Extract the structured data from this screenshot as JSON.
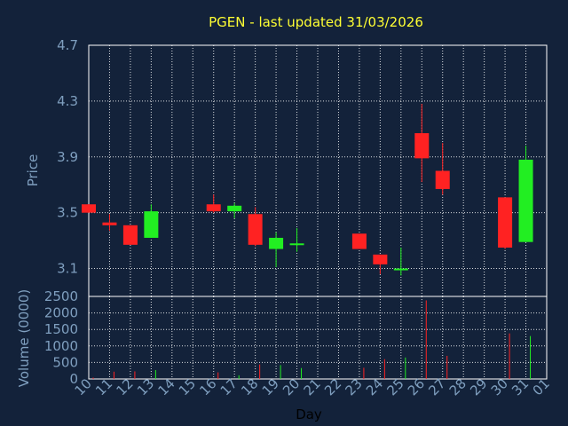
{
  "colors": {
    "background": "#13223a",
    "title": "#ffff33",
    "tick_label": "#7f9fbf",
    "up": "#22ee22",
    "down": "#ff2222",
    "flat": "#22ee22",
    "grid": "#ffffff"
  },
  "chart_data": [
    {
      "type": "candlestick",
      "title": "PGEN - last updated 31/03/2026",
      "ylabel": "Price",
      "ylim": [
        2.9,
        4.7
      ],
      "yticks": [
        "3.1",
        "3.5",
        "3.9",
        "4.3",
        "4.7"
      ],
      "grid": true,
      "candles": [
        {
          "day": "10",
          "open": 3.56,
          "high": 3.56,
          "low": 3.5,
          "close": 3.5
        },
        {
          "day": "11",
          "open": 3.43,
          "high": 3.49,
          "low": 3.37,
          "close": 3.41
        },
        {
          "day": "12",
          "open": 3.41,
          "high": 3.41,
          "low": 3.27,
          "close": 3.27
        },
        {
          "day": "13",
          "open": 3.32,
          "high": 3.56,
          "low": 3.32,
          "close": 3.51
        },
        {
          "day": "16",
          "open": 3.56,
          "high": 3.63,
          "low": 3.5,
          "close": 3.51
        },
        {
          "day": "17",
          "open": 3.51,
          "high": 3.57,
          "low": 3.46,
          "close": 3.55
        },
        {
          "day": "18",
          "open": 3.49,
          "high": 3.54,
          "low": 3.26,
          "close": 3.27
        },
        {
          "day": "19",
          "open": 3.24,
          "high": 3.36,
          "low": 3.11,
          "close": 3.32
        },
        {
          "day": "20",
          "open": 3.27,
          "high": 3.39,
          "low": 3.22,
          "close": 3.28
        },
        {
          "day": "23",
          "open": 3.35,
          "high": 3.35,
          "low": 3.24,
          "close": 3.24
        },
        {
          "day": "24",
          "open": 3.2,
          "high": 3.2,
          "low": 3.06,
          "close": 3.13
        },
        {
          "day": "25",
          "open": 3.1,
          "high": 3.25,
          "low": 3.05,
          "close": 3.1
        },
        {
          "day": "26",
          "open": 4.07,
          "high": 4.28,
          "low": 3.72,
          "close": 3.89
        },
        {
          "day": "27",
          "open": 3.8,
          "high": 4.0,
          "low": 3.63,
          "close": 3.67
        },
        {
          "day": "30",
          "open": 3.61,
          "high": 3.61,
          "low": 3.24,
          "close": 3.25
        },
        {
          "day": "31",
          "open": 3.29,
          "high": 3.98,
          "low": 3.29,
          "close": 3.88
        }
      ]
    },
    {
      "type": "bar",
      "ylabel": "Volume (0000)",
      "xlabel": "Day",
      "ylim": [
        0,
        2500
      ],
      "yticks": [
        "0",
        "500",
        "1000",
        "1500",
        "2000",
        "2500"
      ],
      "categories": [
        "10",
        "11",
        "12",
        "13",
        "14",
        "15",
        "16",
        "17",
        "18",
        "19",
        "20",
        "21",
        "22",
        "23",
        "24",
        "25",
        "26",
        "27",
        "28",
        "29",
        "30",
        "31",
        "01"
      ],
      "values": [
        40,
        220,
        230,
        270,
        0,
        0,
        200,
        110,
        440,
        420,
        330,
        0,
        0,
        340,
        600,
        650,
        2380,
        700,
        0,
        0,
        1380,
        1300,
        0
      ],
      "directions": [
        "down",
        "down",
        "down",
        "up",
        "",
        "",
        "down",
        "up",
        "down",
        "up",
        "up",
        "",
        "",
        "down",
        "down",
        "up",
        "down",
        "down",
        "",
        "",
        "down",
        "up",
        ""
      ]
    }
  ]
}
